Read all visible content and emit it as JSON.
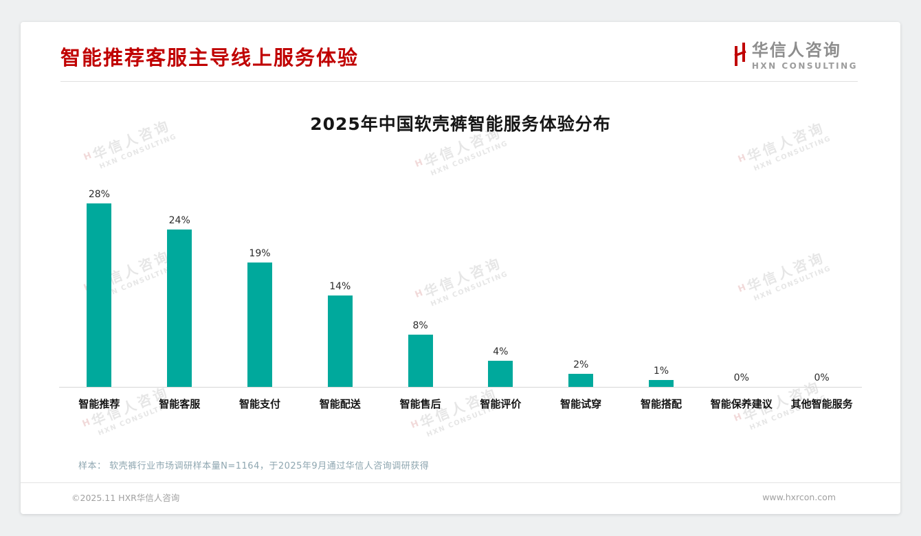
{
  "page": {
    "title": "智能推荐客服主导线上服务体验",
    "logo": {
      "name": "华信人咨询",
      "sub": "HXN CONSULTING"
    },
    "note": "样本： 软壳裤行业市场调研样本量N=1164，于2025年9月通过华信人咨询调研获得",
    "footer": {
      "copyright": "©2025.11 HXR华信人咨询",
      "website": "www.hxrcon.com"
    }
  },
  "watermark": {
    "line1": "华信人咨询",
    "line2": "HXN CONSULTING"
  },
  "colors": {
    "accent_red": "#C00000",
    "bar_teal": "#00A99C"
  },
  "chart_data": {
    "type": "bar",
    "title": "2025年中国软壳裤智能服务体验分布",
    "categories": [
      "智能推荐",
      "智能客服",
      "智能支付",
      "智能配送",
      "智能售后",
      "智能评价",
      "智能试穿",
      "智能搭配",
      "智能保养建议",
      "其他智能服务"
    ],
    "values": [
      28,
      24,
      19,
      14,
      8,
      4,
      2,
      1,
      0,
      0
    ],
    "unit": "%",
    "bar_color": "#00A99C",
    "xlabel": "",
    "ylabel": "",
    "ylim": [
      0,
      30
    ],
    "grid": false,
    "legend": false,
    "data_labels": true
  }
}
